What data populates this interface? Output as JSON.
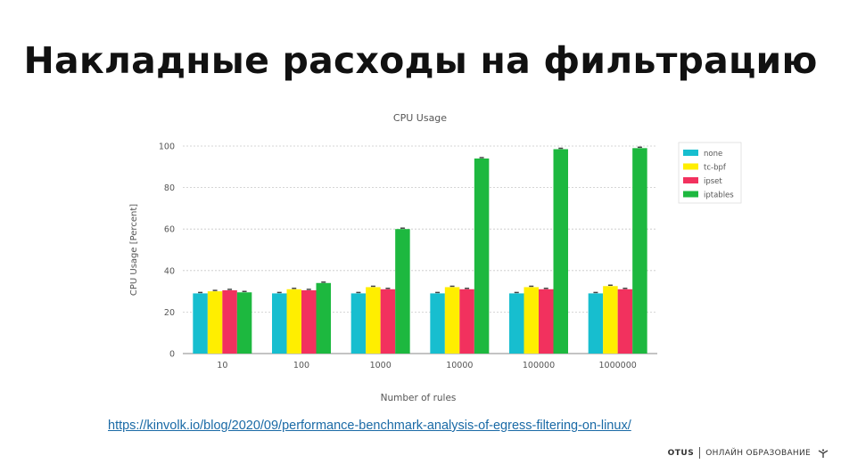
{
  "slide": {
    "title": "Накладные расходы на фильтрацию",
    "source_url": "https://kinvolk.io/blog/2020/09/performance-benchmark-analysis-of-egress-filtering-on-linux/",
    "footer_brand": "OTUS",
    "footer_tagline": "ОНЛАЙН ОБРАЗОВАНИЕ"
  },
  "chart_data": {
    "type": "bar",
    "title": "CPU Usage",
    "xlabel": "Number of rules",
    "ylabel": "CPU Usage [Percent]",
    "ylim": [
      0,
      100
    ],
    "yticks": [
      0,
      20,
      40,
      60,
      80,
      100
    ],
    "grid": true,
    "legend_position": "top-right",
    "categories": [
      "10",
      "100",
      "1000",
      "10000",
      "100000",
      "1000000"
    ],
    "series": [
      {
        "name": "none",
        "color": "#17becf",
        "values": [
          29,
          29,
          29,
          29,
          29,
          29
        ]
      },
      {
        "name": "tc-bpf",
        "color": "#ffee00",
        "values": [
          30,
          31,
          32,
          32,
          32,
          32.5
        ]
      },
      {
        "name": "ipset",
        "color": "#f2315e",
        "values": [
          30.5,
          30.5,
          31,
          31,
          31,
          31
        ]
      },
      {
        "name": "iptables",
        "color": "#1db83f",
        "values": [
          29.5,
          34,
          60,
          94,
          98.5,
          99
        ]
      }
    ]
  }
}
